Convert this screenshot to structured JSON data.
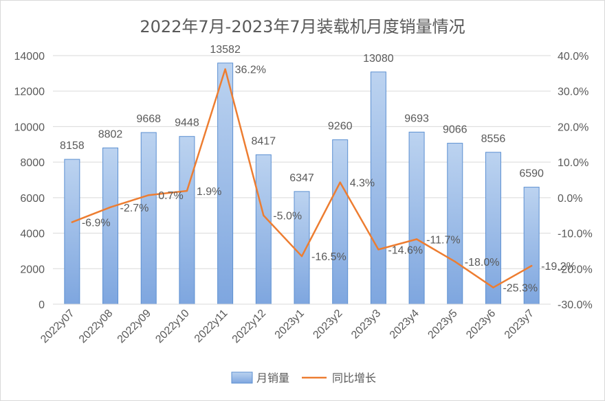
{
  "chart_data": {
    "type": "bar",
    "title": "2022年7月-2023年7月装载机月度销量情况",
    "categories": [
      "2022y07",
      "2022y08",
      "2022y09",
      "2022y10",
      "2022y11",
      "2022y12",
      "2023y1",
      "2023y2",
      "2023y3",
      "2023y4",
      "2023y5",
      "2023y6",
      "2023y7"
    ],
    "series": [
      {
        "name": "月销量",
        "type": "bar",
        "axis": "left",
        "values": [
          8158,
          8802,
          9668,
          9448,
          13582,
          8417,
          6347,
          9260,
          13080,
          9693,
          9066,
          8556,
          6590
        ],
        "labels": [
          "8158",
          "8802",
          "9668",
          "9448",
          "13582",
          "8417",
          "6347",
          "9260",
          "13080",
          "9693",
          "9066",
          "8556",
          "6590"
        ]
      },
      {
        "name": "同比增长",
        "type": "line",
        "axis": "right",
        "values": [
          -6.9,
          -2.7,
          0.7,
          1.9,
          36.2,
          -5.0,
          -16.5,
          4.3,
          -14.6,
          -11.7,
          -18.0,
          -25.3,
          -19.2
        ],
        "labels": [
          "-6.9%",
          "-2.7%",
          "0.7%",
          "1.9%",
          "36.2%",
          "-5.0%",
          "-16.5%",
          "4.3%",
          "-14.6%",
          "-11.7%",
          "-18.0%",
          "-25.3%",
          "-19.2%"
        ]
      }
    ],
    "y_left": {
      "min": 0,
      "max": 14000,
      "ticks": [
        "0",
        "2000",
        "4000",
        "6000",
        "8000",
        "10000",
        "12000",
        "14000"
      ]
    },
    "y_right": {
      "min": -30,
      "max": 40,
      "ticks": [
        "-30.0%",
        "-20.0%",
        "-10.0%",
        "0.0%",
        "10.0%",
        "20.0%",
        "30.0%",
        "40.0%"
      ]
    },
    "grid": true,
    "legend_position": "bottom",
    "colors": {
      "bar_fill_light": "#bcd3f0",
      "bar_fill_dark": "#7ea6df",
      "bar_stroke": "#5b8fd1",
      "line": "#ed7d31",
      "grid": "#d9d9d9",
      "text": "#595959"
    }
  }
}
